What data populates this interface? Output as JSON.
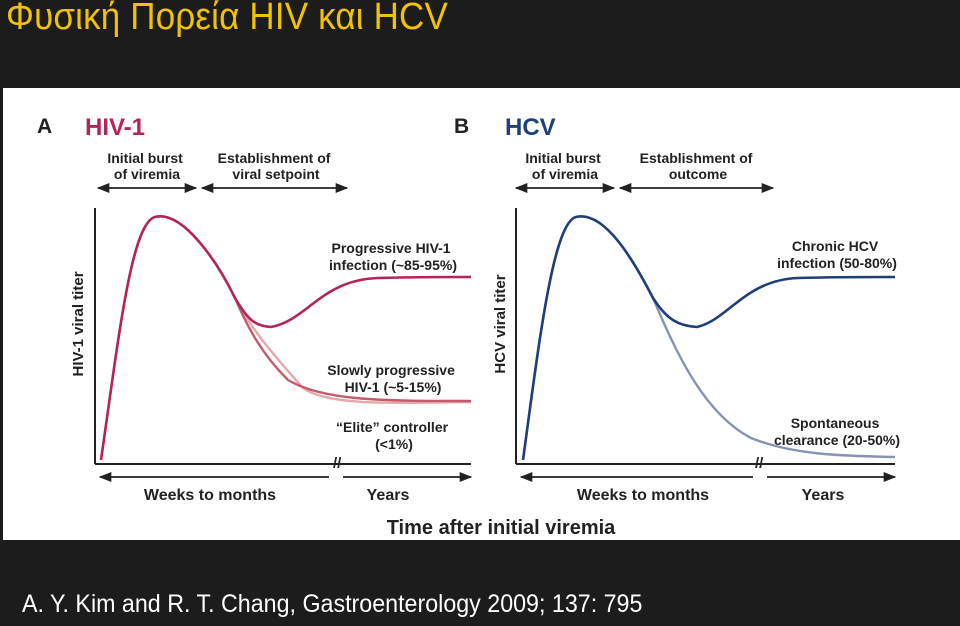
{
  "title": "Φυσική Πορεία HIV και HCV",
  "citation": "A. Y. Kim and R. T. Chang, Gastroenterology 2009; 137: 795",
  "colors": {
    "title": "#f2c200",
    "hiv": "#b3245a",
    "hiv_slow": "#c45a6b",
    "hiv_elite": "#e6a9ab",
    "hcv": "#1f3f7a",
    "hcv_clear": "#8593b5"
  },
  "figure": {
    "x_axis_title": "Time after initial viremia",
    "panel_a": {
      "letter": "A",
      "name": "HIV-1",
      "phase1": [
        "Initial burst",
        "of viremia"
      ],
      "phase2": [
        "Establishment of",
        "viral setpoint"
      ],
      "y_label": "HIV-1 viral titer",
      "x_seg1": "Weeks to months",
      "x_seg2": "Years",
      "curve_progressive": [
        "Progressive HIV-1",
        "infection (~85-95%)"
      ],
      "curve_slow": [
        "Slowly progressive",
        "HIV-1 (~5-15%)"
      ],
      "curve_elite": [
        "“Elite” controller",
        "(<1%)"
      ]
    },
    "panel_b": {
      "letter": "B",
      "name": "HCV",
      "phase1": [
        "Initial burst",
        "of viremia"
      ],
      "phase2": [
        "Establishment of",
        "outcome"
      ],
      "y_label": "HCV viral titer",
      "x_seg1": "Weeks to months",
      "x_seg2": "Years",
      "curve_chronic": [
        "Chronic HCV",
        "infection (50-80%)"
      ],
      "curve_clearance": [
        "Spontaneous",
        "clearance (20-50%)"
      ]
    }
  }
}
